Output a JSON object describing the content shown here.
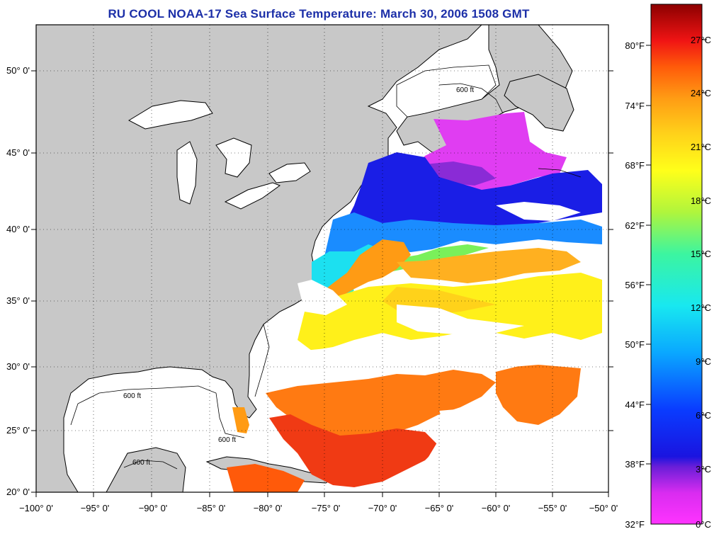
{
  "title": "RU COOL  NOAA-17  Sea Surface Temperature:  March 30, 2006 1508 GMT",
  "map": {
    "lon_ticks": [
      "−100° 0'",
      "−95° 0'",
      "−90° 0'",
      "−85° 0'",
      "−80° 0'",
      "−75° 0'",
      "−70° 0'",
      "−65° 0'",
      "−60° 0'",
      "−55° 0'",
      "−50° 0'"
    ],
    "lat_ticks": [
      "50° 0'",
      "45° 0'",
      "40° 0'",
      "35° 0'",
      "30° 0'",
      "25° 0'",
      "20° 0'"
    ],
    "contour_label": "600 ft",
    "colors": {
      "land": "#c8c8c8",
      "coast": "#000000",
      "ocean_cloud": "#ffffff"
    }
  },
  "colorbar": {
    "fahrenheit": [
      "80°F",
      "74°F",
      "68°F",
      "62°F",
      "56°F",
      "50°F",
      "44°F",
      "38°F",
      "32°F"
    ],
    "celsius": [
      "27°C",
      "24°C",
      "21°C",
      "18°C",
      "15°C",
      "12°C",
      "9°C",
      "6°C",
      "3°C",
      "0°C"
    ]
  }
}
